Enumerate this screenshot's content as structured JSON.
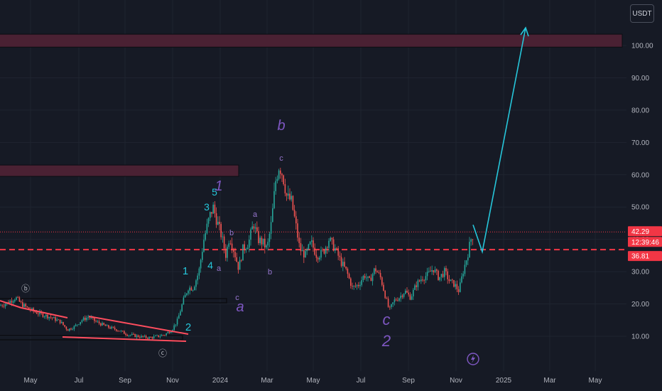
{
  "chart_data": {
    "type": "candlestick",
    "currency": "USDT",
    "y_axis": {
      "min": 4,
      "max": 114,
      "ticks": [
        "10.00",
        "20.00",
        "30.00",
        "40.00",
        "50.00",
        "60.00",
        "70.00",
        "80.00",
        "90.00",
        "100.00"
      ]
    },
    "x_axis": {
      "ticks": [
        "May",
        "Jul",
        "Sep",
        "Nov",
        "2024",
        "Mar",
        "May",
        "Jul",
        "Sep",
        "Nov",
        "2025",
        "Mar",
        "May"
      ]
    },
    "price_badges": [
      {
        "value": "42.29",
        "color": "#f23645"
      },
      {
        "value": "12:39:46",
        "color": "#f23645"
      },
      {
        "value": "36.81",
        "color": "#f23645"
      }
    ],
    "horizontal_levels": [
      {
        "value": 42.29,
        "style": "dotted",
        "color": "#f23645"
      },
      {
        "value": 36.81,
        "style": "dashed",
        "color": "#f23645"
      }
    ],
    "zones": [
      {
        "from": 99.5,
        "to": 103.5,
        "color": "#4a2133"
      },
      {
        "from": 59.5,
        "to": 63.0,
        "color": "#4a2133"
      }
    ],
    "price_path": [
      [
        0,
        19.5
      ],
      [
        12,
        20.5
      ],
      [
        22,
        22
      ],
      [
        30,
        20
      ],
      [
        40,
        18.5
      ],
      [
        55,
        17
      ],
      [
        70,
        16
      ],
      [
        85,
        14.5
      ],
      [
        95,
        12
      ],
      [
        105,
        13
      ],
      [
        115,
        15
      ],
      [
        125,
        16
      ],
      [
        135,
        14.5
      ],
      [
        150,
        13
      ],
      [
        165,
        12
      ],
      [
        180,
        10.5
      ],
      [
        195,
        10
      ],
      [
        210,
        9.5
      ],
      [
        222,
        10
      ],
      [
        232,
        10.5
      ],
      [
        242,
        12
      ],
      [
        250,
        15
      ],
      [
        258,
        21
      ],
      [
        265,
        25
      ],
      [
        272,
        25
      ],
      [
        280,
        30
      ],
      [
        287,
        40
      ],
      [
        295,
        47
      ],
      [
        300,
        50
      ],
      [
        305,
        46
      ],
      [
        312,
        41
      ],
      [
        318,
        35
      ],
      [
        323,
        41
      ],
      [
        330,
        36
      ],
      [
        336,
        31
      ],
      [
        342,
        37
      ],
      [
        350,
        39
      ],
      [
        357,
        45
      ],
      [
        363,
        40
      ],
      [
        370,
        39
      ],
      [
        376,
        37
      ],
      [
        382,
        45
      ],
      [
        388,
        58
      ],
      [
        393,
        63
      ],
      [
        398,
        60
      ],
      [
        404,
        53
      ],
      [
        410,
        52
      ],
      [
        416,
        45
      ],
      [
        422,
        37
      ],
      [
        430,
        35
      ],
      [
        438,
        39
      ],
      [
        446,
        35
      ],
      [
        455,
        36
      ],
      [
        463,
        40
      ],
      [
        472,
        37
      ],
      [
        480,
        33
      ],
      [
        488,
        30
      ],
      [
        496,
        25
      ],
      [
        505,
        26
      ],
      [
        513,
        29
      ],
      [
        520,
        27
      ],
      [
        528,
        31
      ],
      [
        536,
        28
      ],
      [
        543,
        22
      ],
      [
        548,
        18
      ],
      [
        555,
        21
      ],
      [
        562,
        22
      ],
      [
        570,
        24
      ],
      [
        578,
        22
      ],
      [
        586,
        26
      ],
      [
        594,
        28
      ],
      [
        602,
        29
      ],
      [
        610,
        31
      ],
      [
        618,
        28
      ],
      [
        626,
        30
      ],
      [
        633,
        27
      ],
      [
        640,
        26
      ],
      [
        646,
        24
      ],
      [
        652,
        30
      ],
      [
        658,
        35
      ],
      [
        663,
        40
      ],
      [
        667,
        42
      ]
    ],
    "wave_labels": [
      {
        "text": "1",
        "color": "#26c6da",
        "size": 15
      },
      {
        "text": "2",
        "color": "#26c6da",
        "size": 15
      },
      {
        "text": "3",
        "color": "#26c6da",
        "size": 14
      },
      {
        "text": "4",
        "color": "#26c6da",
        "size": 14
      },
      {
        "text": "5",
        "color": "#26c6da",
        "size": 14
      },
      {
        "text": "1",
        "color": "#7e57c2",
        "size": 20,
        "italic": true
      },
      {
        "text": "a",
        "color": "#7e57c2",
        "size": 20,
        "italic": true
      },
      {
        "text": "b",
        "color": "#7e57c2",
        "size": 20,
        "italic": true
      },
      {
        "text": "c",
        "color": "#7e57c2",
        "size": 22,
        "italic": true
      },
      {
        "text": "2",
        "color": "#7e57c2",
        "size": 22,
        "italic": true
      },
      {
        "text": "a",
        "color": "#9575cd",
        "size": 11
      },
      {
        "text": "b",
        "color": "#9575cd",
        "size": 11
      },
      {
        "text": "a",
        "color": "#9575cd",
        "size": 11
      },
      {
        "text": "b",
        "color": "#9575cd",
        "size": 11
      },
      {
        "text": "c",
        "color": "#9575cd",
        "size": 11
      },
      {
        "text": "c",
        "color": "#9575cd",
        "size": 11
      },
      {
        "text": "ⓑ",
        "color": "#b2b5be",
        "size": 12
      },
      {
        "text": "ⓒ",
        "color": "#b2b5be",
        "size": 12
      }
    ],
    "projection": {
      "from_value": 42.29,
      "dip_value": 36.81,
      "target_value": 105.5,
      "color": "#26c6da"
    },
    "colors": {
      "up": "#26a69a",
      "down": "#ef5350",
      "background": "#161a25",
      "grid": "#1f2430",
      "triangle": "#ff4d5e"
    }
  }
}
